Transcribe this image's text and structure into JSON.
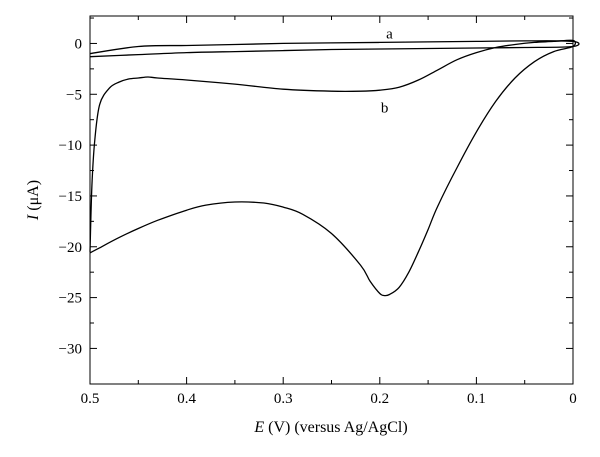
{
  "chart_data": {
    "type": "line",
    "title": "",
    "xlabel_symbol": "E",
    "xlabel_rest": " (V) (versus Ag/AgCl)",
    "ylabel_symbol": "I",
    "ylabel_rest": " (μA)",
    "xlim": [
      0.5,
      0
    ],
    "ylim": [
      -33.5,
      2.7
    ],
    "grid": false,
    "x_ticks": [
      0.5,
      0.4,
      0.3,
      0.2,
      0.1,
      0
    ],
    "x_tick_labels": [
      "0.5",
      "0.4",
      "0.3",
      "0.2",
      "0.1",
      "0"
    ],
    "y_ticks": [
      0,
      -5,
      -10,
      -15,
      -20,
      -25,
      -30
    ],
    "y_tick_labels": [
      "0",
      "−5",
      "−10",
      "−15",
      "−20",
      "−25",
      "−30"
    ],
    "series": [
      {
        "name": "a",
        "label_position": [
          0.19,
          1.0
        ],
        "x": [
          0.5,
          0.45,
          0.4,
          0.35,
          0.3,
          0.25,
          0.2,
          0.15,
          0.1,
          0.05,
          0.0,
          0.0,
          0.05,
          0.1,
          0.15,
          0.2,
          0.25,
          0.3,
          0.35,
          0.4,
          0.45,
          0.5
        ],
        "y": [
          -1.3,
          -1.1,
          -0.9,
          -0.8,
          -0.7,
          -0.6,
          -0.55,
          -0.5,
          -0.45,
          -0.4,
          -0.3,
          0.2,
          0.25,
          0.2,
          0.15,
          0.1,
          0.05,
          0.0,
          -0.1,
          -0.2,
          -0.3,
          -1.0
        ]
      },
      {
        "name": "b",
        "label_position": [
          0.195,
          -6.3
        ],
        "x": [
          0.5,
          0.498,
          0.495,
          0.49,
          0.48,
          0.47,
          0.46,
          0.45,
          0.44,
          0.43,
          0.4,
          0.35,
          0.3,
          0.25,
          0.22,
          0.2,
          0.18,
          0.16,
          0.14,
          0.12,
          0.1,
          0.08,
          0.06,
          0.04,
          0.02,
          0.0,
          0.0,
          0.02,
          0.04,
          0.06,
          0.08,
          0.1,
          0.12,
          0.14,
          0.15,
          0.16,
          0.17,
          0.18,
          0.19,
          0.195,
          0.2,
          0.21,
          0.22,
          0.25,
          0.28,
          0.3,
          0.32,
          0.35,
          0.38,
          0.4,
          0.43,
          0.45,
          0.47,
          0.49,
          0.5
        ],
        "y": [
          -20.5,
          -14.0,
          -9.5,
          -6.0,
          -4.4,
          -3.8,
          -3.5,
          -3.4,
          -3.3,
          -3.4,
          -3.6,
          -4.0,
          -4.5,
          -4.7,
          -4.7,
          -4.6,
          -4.3,
          -3.6,
          -2.6,
          -1.6,
          -0.9,
          -0.4,
          -0.1,
          0.1,
          0.2,
          0.3,
          -0.3,
          -0.8,
          -1.8,
          -3.4,
          -5.7,
          -8.7,
          -12.2,
          -16.0,
          -18.3,
          -20.5,
          -22.5,
          -24.0,
          -24.7,
          -24.8,
          -24.6,
          -23.4,
          -21.8,
          -18.7,
          -16.8,
          -16.1,
          -15.7,
          -15.6,
          -15.9,
          -16.4,
          -17.4,
          -18.2,
          -19.1,
          -20.1,
          -20.6
        ]
      }
    ]
  }
}
